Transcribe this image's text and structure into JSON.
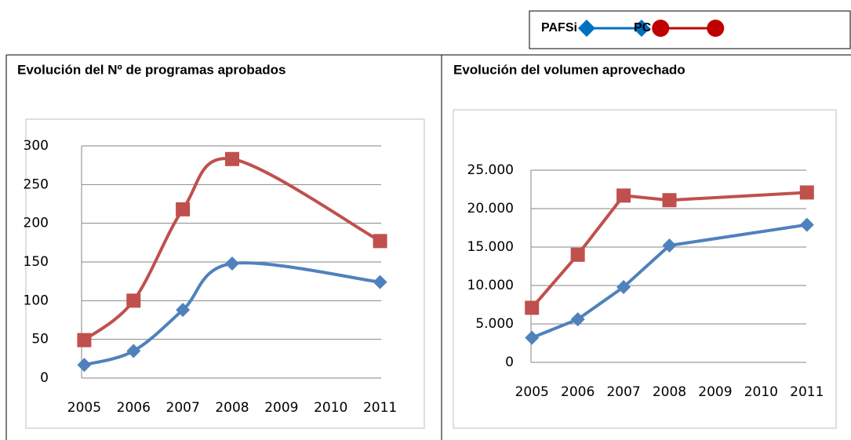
{
  "legend": [
    {
      "name": "PAFSi",
      "color": "#0070c0",
      "marker": "diamond"
    },
    {
      "name": "PC",
      "color": "#c00000",
      "marker": "circle"
    }
  ],
  "chart_data": [
    {
      "type": "line",
      "title": "Evolución del Nº de programas aprobados",
      "smooth": true,
      "grid": true,
      "x": [
        2005,
        2006,
        2007,
        2008,
        2011
      ],
      "xlim": [
        2004.5,
        2011.5
      ],
      "xticks": [
        2005,
        2006,
        2007,
        2008,
        2009,
        2010,
        2011
      ],
      "ylim": [
        0,
        300
      ],
      "yticks": [
        0,
        50,
        100,
        150,
        200,
        250,
        300
      ],
      "series": [
        {
          "color": "#4f81bd",
          "marker": "diamond",
          "values": [
            17,
            35,
            88,
            148,
            124
          ]
        },
        {
          "color": "#c0504d",
          "marker": "square",
          "values": [
            49,
            100,
            218,
            283,
            177
          ]
        }
      ]
    },
    {
      "type": "line",
      "title": "Evolución del volumen aprovechado",
      "smooth": false,
      "grid": true,
      "x": [
        2005,
        2006,
        2007,
        2008,
        2011
      ],
      "xlim": [
        2004.5,
        2011.5
      ],
      "xticks": [
        2005,
        2006,
        2007,
        2008,
        2009,
        2010,
        2011
      ],
      "ylim": [
        0,
        25000
      ],
      "yticks": [
        0,
        {
          "value": 5000,
          "label": "5.000"
        },
        {
          "value": 10000,
          "label": "10.000"
        },
        {
          "value": 15000,
          "label": "15.000"
        },
        {
          "value": 20000,
          "label": "20.000"
        },
        {
          "value": 25000,
          "label": "25.000"
        }
      ],
      "series": [
        {
          "color": "#4f81bd",
          "marker": "diamond",
          "values": [
            3200,
            5600,
            9800,
            15200,
            17900
          ]
        },
        {
          "color": "#c0504d",
          "marker": "square",
          "values": [
            7100,
            14000,
            21700,
            21100,
            22100
          ]
        }
      ]
    }
  ]
}
